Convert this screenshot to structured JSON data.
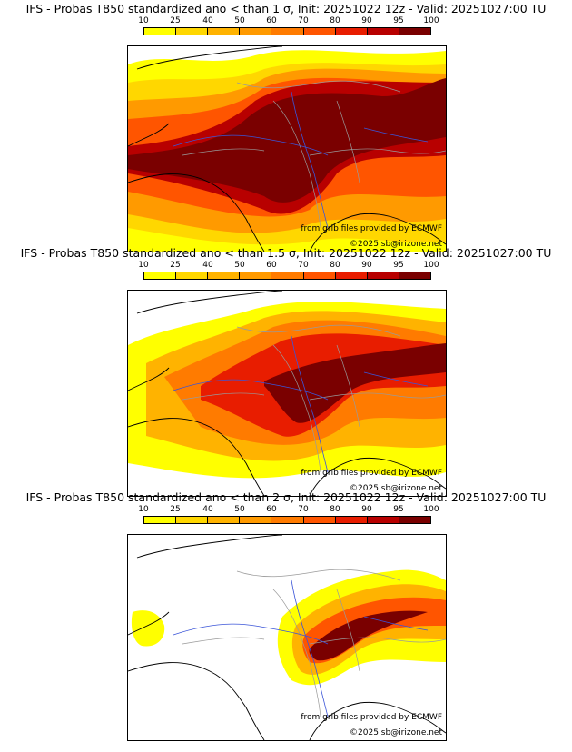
{
  "panels": [
    {
      "title": "IFS - Probas T850  standardized ano < than 1 σ, Init: 20251022 12z - Valid: 20251027:00 TU",
      "threshold": "1 σ",
      "probability_level": "high"
    },
    {
      "title": "IFS - Probas T850  standardized ano < than 1.5 σ, Init: 20251022 12z - Valid: 20251027:00 TU",
      "threshold": "1.5 σ",
      "probability_level": "medium"
    },
    {
      "title": "IFS - Probas T850  standardized ano < than 2 σ, Init: 20251022 12z - Valid: 20251027:00 TU",
      "threshold": "2 σ",
      "probability_level": "low"
    }
  ],
  "colorbar": {
    "ticks": [
      "10",
      "25",
      "40",
      "50",
      "60",
      "70",
      "80",
      "90",
      "95",
      "100"
    ],
    "colors": [
      "#ffff00",
      "#ffd700",
      "#ffb300",
      "#ff9a00",
      "#ff7b00",
      "#ff5500",
      "#e81d00",
      "#b80000",
      "#7a0000"
    ]
  },
  "credits": {
    "source": "from grib files provided by ECMWF",
    "copyright": "©2025 sb@irizone.net"
  },
  "colors": {
    "coastline": "#000000",
    "borders": "#9a9a9a",
    "rivers": "#3b55d8"
  }
}
